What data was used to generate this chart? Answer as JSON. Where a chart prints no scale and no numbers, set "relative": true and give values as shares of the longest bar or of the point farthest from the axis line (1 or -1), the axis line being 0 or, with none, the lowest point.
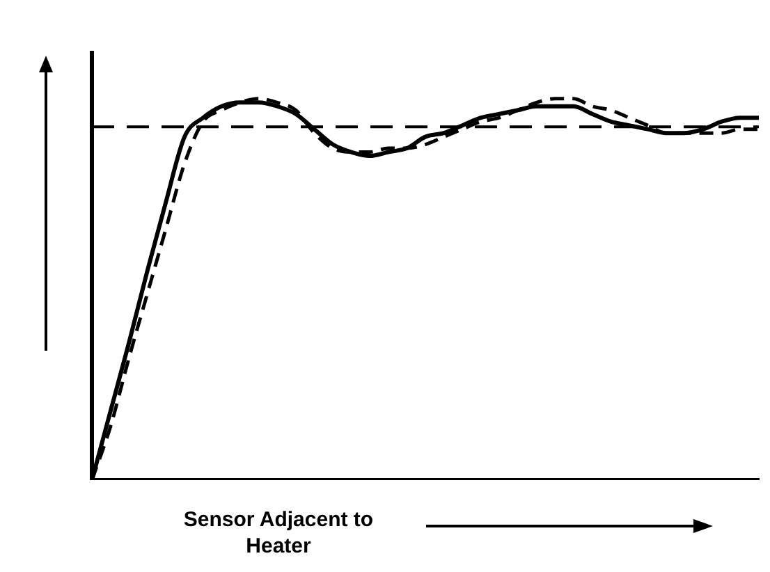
{
  "chart_data": {
    "type": "line",
    "relative": true,
    "xlabel": "Sensor Adjacent to Heater",
    "marker": "none",
    "categories": [
      null,
      null,
      null,
      null,
      null,
      null,
      null,
      null,
      null,
      null,
      null,
      null,
      null,
      null,
      null,
      null,
      null,
      null,
      null,
      null,
      null,
      null,
      null,
      null,
      null,
      null,
      null,
      null,
      null,
      null,
      null,
      null,
      null,
      null,
      null,
      null,
      null
    ],
    "series": [
      {
        "color": "#000000",
        "line_style": "solid",
        "values": [
          0,
          0.18,
          0.36,
          0.55,
          0.73,
          0.9,
          0.95,
          0.98,
          0.99,
          0.99,
          0.98,
          0.96,
          0.92,
          0.88,
          0.86,
          0.85,
          0.86,
          0.87,
          0.9,
          0.91,
          0.93,
          0.95,
          0.96,
          0.97,
          0.98,
          0.98,
          0.98,
          0.96,
          0.94,
          0.93,
          0.92,
          0.91,
          0.91,
          0.92,
          0.94,
          0.95,
          0.95
        ]
      },
      {
        "color": "#000000",
        "line_style": "dashed",
        "values": [
          0,
          0.14,
          0.32,
          0.49,
          0.66,
          0.83,
          0.94,
          0.97,
          0.99,
          1,
          0.99,
          0.97,
          0.91,
          0.87,
          0.86,
          0.86,
          0.87,
          0.87,
          0.88,
          0.9,
          0.92,
          0.94,
          0.95,
          0.97,
          0.99,
          1,
          1,
          0.98,
          0.97,
          0.95,
          0.93,
          0.91,
          0.91,
          0.91,
          0.91,
          0.92,
          0.92
        ]
      }
    ],
    "ref_lines": [
      {
        "axis": "y",
        "value": 0.926,
        "color": "#000000",
        "line_style": "dashed"
      }
    ]
  }
}
